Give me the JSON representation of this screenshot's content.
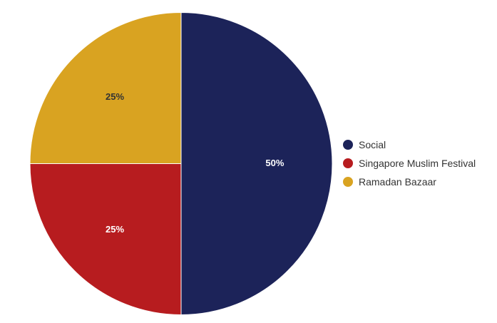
{
  "chart_data": {
    "type": "pie",
    "title": "",
    "categories": [
      "Social",
      "Singapore Muslim Festival",
      "Ramadan Bazaar"
    ],
    "values": [
      50,
      25,
      25
    ],
    "value_labels": [
      "50%",
      "25%",
      "25%"
    ],
    "colors": [
      "#1c2359",
      "#b71c1f",
      "#d9a321"
    ],
    "label_colors": [
      "#ffffff",
      "#ffffff",
      "#333333"
    ],
    "start_angle_deg": 0,
    "direction": "clockwise",
    "legend_position": "right"
  },
  "legend": {
    "items": [
      {
        "label": "Social",
        "color": "#1c2359"
      },
      {
        "label": "Singapore Muslim Festival",
        "color": "#b71c1f"
      },
      {
        "label": "Ramadan Bazaar",
        "color": "#d9a321"
      }
    ]
  }
}
